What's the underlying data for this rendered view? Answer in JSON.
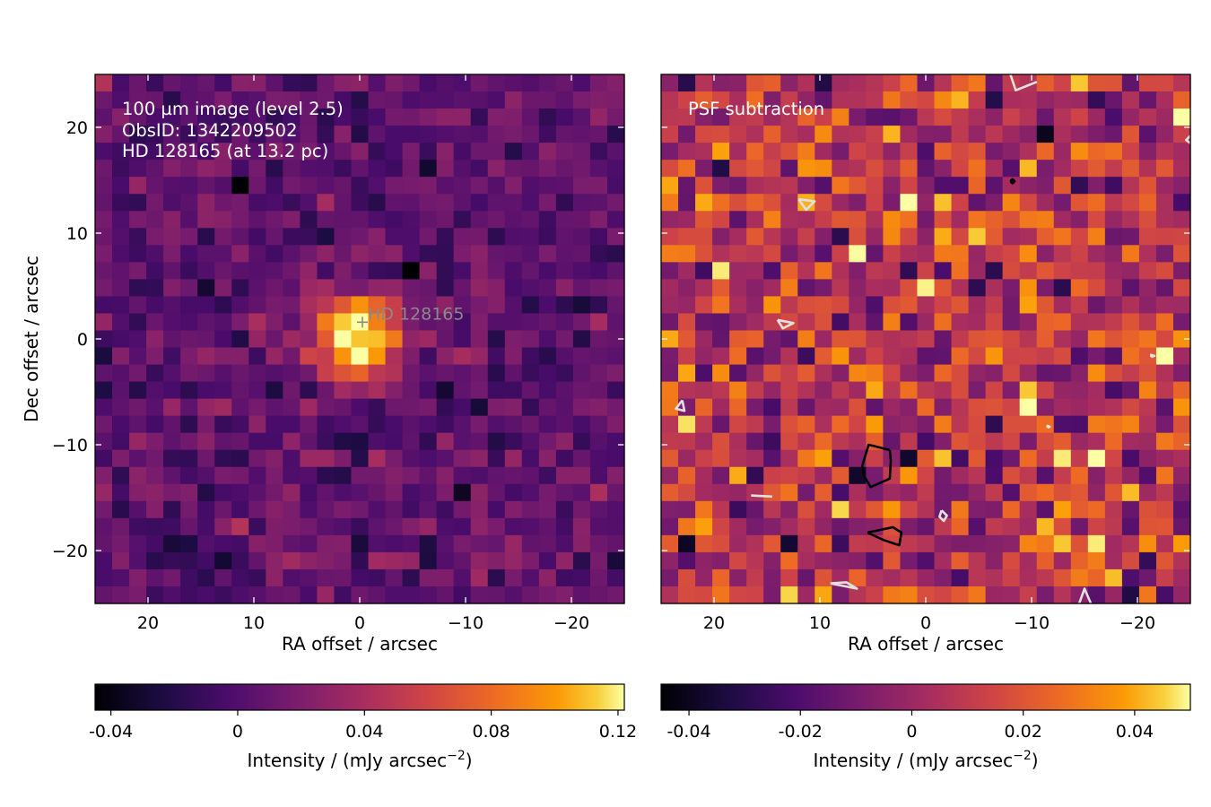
{
  "chart_data": [
    {
      "type": "heatmap",
      "panel": "left",
      "annotations": [
        "100 µm image (level 2.5)",
        "ObsID: 1342209502",
        "HD 128165 (at 13.2 pc)"
      ],
      "star_label": "HD 128165",
      "star_position": [
        0,
        1.5
      ],
      "xlabel": "RA offset / arcsec",
      "ylabel": "Dec offset / arcsec",
      "xlim": [
        25,
        -25
      ],
      "ylim": [
        -25,
        25
      ],
      "x_ticks": [
        20,
        10,
        0,
        -10,
        -20
      ],
      "x_tick_labels": [
        "20",
        "10",
        "0",
        "−10",
        "−20"
      ],
      "y_ticks": [
        20,
        10,
        0,
        -10,
        -20
      ],
      "y_tick_labels": [
        "20",
        "10",
        "0",
        "−10",
        "−20"
      ],
      "colormap": "inferno",
      "pixel_grid": [
        31,
        31
      ],
      "colorbar": {
        "label": "Intensity / (mJy arcsec",
        "label_exponent": "−2",
        "label_close": ")",
        "range": [
          -0.045,
          0.122
        ],
        "ticks": [
          -0.04,
          0,
          0.04,
          0.08,
          0.12
        ],
        "tick_labels": [
          "-0.04",
          "0",
          "0.04",
          "0.08",
          "0.12"
        ]
      }
    },
    {
      "type": "heatmap",
      "panel": "right",
      "annotations": [
        "PSF subtraction"
      ],
      "xlabel": "RA offset / arcsec",
      "xlim": [
        25,
        -25
      ],
      "ylim": [
        -25,
        25
      ],
      "x_ticks": [
        20,
        10,
        0,
        -10,
        -20
      ],
      "x_tick_labels": [
        "20",
        "10",
        "0",
        "−10",
        "−20"
      ],
      "colormap": "inferno",
      "pixel_grid": [
        31,
        31
      ],
      "colorbar": {
        "label": "Intensity / (mJy arcsec",
        "label_exponent": "−2",
        "label_close": ")",
        "range": [
          -0.045,
          0.05
        ],
        "ticks": [
          -0.04,
          -0.02,
          0,
          0.02,
          0.04
        ],
        "tick_labels": [
          "-0.04",
          "-0.02",
          "0",
          "0.02",
          "0.04"
        ]
      },
      "contours": [
        {
          "color": "#000000",
          "points": [
            [
              3.4,
              -10.5
            ],
            [
              5.4,
              -10.0
            ],
            [
              6.0,
              -12.0
            ],
            [
              5.8,
              -13.0
            ],
            [
              5.2,
              -14.0
            ],
            [
              3.4,
              -13.2
            ],
            [
              3.3,
              -11.5
            ],
            [
              3.4,
              -10.5
            ]
          ]
        },
        {
          "color": "#000000",
          "points": [
            [
              5.5,
              -18.3
            ],
            [
              3.1,
              -17.8
            ],
            [
              2.3,
              -18.3
            ],
            [
              2.5,
              -19.5
            ],
            [
              4.0,
              -19.0
            ],
            [
              5.5,
              -18.3
            ]
          ]
        },
        {
          "color": "#000000",
          "points": [
            [
              -8.0,
              14.9
            ],
            [
              -8.2,
              14.7
            ],
            [
              -8.4,
              14.9
            ],
            [
              -8.2,
              15.1
            ],
            [
              -8.0,
              14.9
            ]
          ]
        },
        {
          "color": "#e0e0e0",
          "points": [
            [
              -8.0,
              25.0
            ],
            [
              -8.5,
              23.5
            ],
            [
              -10.5,
              24.3
            ]
          ]
        },
        {
          "color": "#e0e0e0",
          "points": [
            [
              12.0,
              13.2
            ],
            [
              10.5,
              13.0
            ],
            [
              11.3,
              12.2
            ],
            [
              12.0,
              13.2
            ]
          ]
        },
        {
          "color": "#e0e0e0",
          "points": [
            [
              14.0,
              1.8
            ],
            [
              12.5,
              1.5
            ],
            [
              13.5,
              1.0
            ],
            [
              14.0,
              1.8
            ]
          ]
        },
        {
          "color": "#e0e0e0",
          "points": [
            [
              23.0,
              -5.8
            ],
            [
              22.8,
              -6.8
            ],
            [
              23.6,
              -6.6
            ],
            [
              23.0,
              -5.8
            ]
          ]
        },
        {
          "color": "#e0e0e0",
          "points": [
            [
              16.5,
              -14.8
            ],
            [
              14.5,
              -14.9
            ]
          ]
        },
        {
          "color": "#e0e0e0",
          "points": [
            [
              -1.5,
              -16.2
            ],
            [
              -2.0,
              -16.7
            ],
            [
              -1.7,
              -17.2
            ],
            [
              -1.3,
              -16.8
            ],
            [
              -1.5,
              -16.2
            ]
          ]
        },
        {
          "color": "#e0e0e0",
          "points": [
            [
              9.0,
              -23.1
            ],
            [
              6.5,
              -23.6
            ],
            [
              7.5,
              -23.0
            ],
            [
              9.0,
              -23.1
            ]
          ]
        },
        {
          "color": "#e0e0e0",
          "points": [
            [
              -14.5,
              -25.0
            ],
            [
              -15.0,
              -23.6
            ],
            [
              -15.6,
              -25.0
            ]
          ]
        },
        {
          "color": "#e0e0e0",
          "points": [
            [
              -21.3,
              -1.7
            ],
            [
              -21.6,
              -1.6
            ],
            [
              -21.3,
              -1.5
            ],
            [
              -21.3,
              -1.7
            ]
          ]
        },
        {
          "color": "#e0e0e0",
          "points": [
            [
              -11.5,
              -8.4
            ],
            [
              -11.7,
              -8.3
            ],
            [
              -11.5,
              -8.2
            ],
            [
              -11.5,
              -8.4
            ]
          ]
        },
        {
          "color": "#e0e0e0",
          "points": [
            [
              -25.0,
              18.5
            ],
            [
              -24.6,
              18.8
            ],
            [
              -25.0,
              19.2
            ]
          ]
        }
      ]
    }
  ]
}
